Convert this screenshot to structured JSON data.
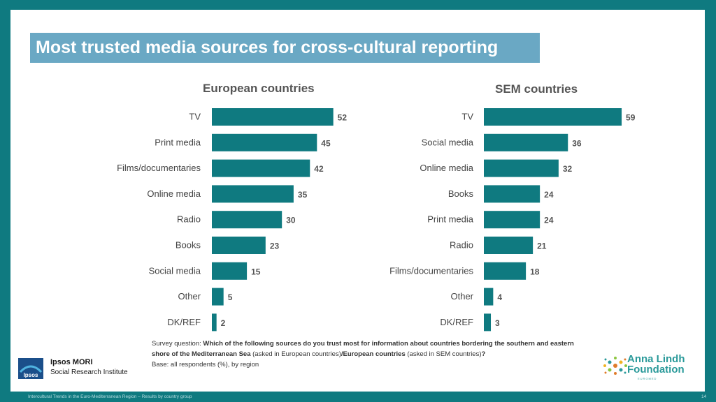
{
  "slide": {
    "title": "Most trusted media sources for cross-cultural reporting",
    "footnote_prefix": "Survey question: ",
    "footnote_question": "Which of the following sources do you trust most for information about countries bordering the southern and eastern shore of the Mediterranean Sea",
    "footnote_mid1": " (asked in European countries)",
    "footnote_euro": "/European countries",
    "footnote_mid2": " (asked in SEM countries)",
    "footnote_end": "?",
    "base": "Base: all respondents (%), by region",
    "ipsos_badge": "Ipsos",
    "ipsos_line1": "Ipsos MORI",
    "ipsos_line2": "Social Research Institute",
    "alf_line1": "Anna Lindh",
    "alf_line2": "Foundation",
    "alf_small": "EUROMED",
    "footer": "Intercultural Trends in the Euro-Mediterranean Region – Results by country group",
    "page_number": "14"
  },
  "colors": {
    "bar": "#0f7a80",
    "accent": "#6aa8c4",
    "frame": "#0f7a80"
  },
  "chart_data": [
    {
      "type": "bar",
      "orientation": "horizontal",
      "title": "European countries",
      "categories": [
        "TV",
        "Print media",
        "Films/documentaries",
        "Online media",
        "Radio",
        "Books",
        "Social media",
        "Other",
        "DK/REF"
      ],
      "values": [
        52,
        45,
        42,
        35,
        30,
        23,
        15,
        5,
        2
      ],
      "xlim": [
        0,
        60
      ],
      "grid": false,
      "legend": "none"
    },
    {
      "type": "bar",
      "orientation": "horizontal",
      "title": "SEM countries",
      "categories": [
        "TV",
        "Social media",
        "Online media",
        "Books",
        "Print media",
        "Radio",
        "Films/documentaries",
        "Other",
        "DK/REF"
      ],
      "values": [
        59,
        36,
        32,
        24,
        24,
        21,
        18,
        4,
        3
      ],
      "xlim": [
        0,
        60
      ],
      "grid": false,
      "legend": "none"
    }
  ]
}
